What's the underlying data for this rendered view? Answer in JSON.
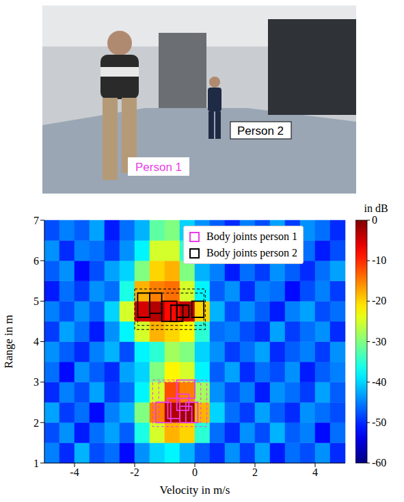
{
  "photo": {
    "labels": [
      {
        "text": "Person 1",
        "color": "#e83ee8"
      },
      {
        "text": "Person 2",
        "color": "#000000"
      }
    ]
  },
  "chart_data": {
    "type": "heatmap",
    "xlabel": "Velocity in m/s",
    "ylabel": "Range in m",
    "xlim": [
      -5,
      5
    ],
    "xticks": [
      -4,
      -2,
      0,
      2,
      4
    ],
    "ylim": [
      1,
      7
    ],
    "yticks": [
      1,
      2,
      3,
      4,
      5,
      6,
      7
    ],
    "legend": "upper right",
    "cells": {
      "velocity_edges": [
        -5,
        -4.5,
        -4,
        -3.5,
        -3,
        -2.5,
        -2,
        -1.5,
        -1,
        -0.5,
        0,
        0.5,
        1,
        1.5,
        2,
        2.5,
        3,
        3.5,
        4,
        4.5,
        5
      ],
      "range_edges": [
        1,
        1.5,
        2,
        2.5,
        3,
        3.5,
        4,
        4.5,
        5,
        5.5,
        6,
        6.5,
        7
      ],
      "values": [
        [
          -45,
          -50,
          -42,
          -48,
          -46,
          -52,
          -44,
          -40,
          -38,
          -42,
          -47,
          -50,
          -44,
          -49,
          -43,
          -51,
          -46,
          -48,
          -44,
          -50
        ],
        [
          -48,
          -44,
          -51,
          -46,
          -43,
          -47,
          -36,
          -25,
          -18,
          -20,
          -35,
          -46,
          -50,
          -44,
          -48,
          -42,
          -47,
          -45,
          -52,
          -46
        ],
        [
          -43,
          -49,
          -46,
          -52,
          -45,
          -42,
          -30,
          -15,
          -3,
          -2,
          -18,
          -40,
          -46,
          -49,
          -43,
          -47,
          -50,
          -44,
          -46,
          -48
        ],
        [
          -50,
          -45,
          -48,
          -43,
          -49,
          -46,
          -38,
          -25,
          -12,
          -15,
          -28,
          -44,
          -48,
          -45,
          -51,
          -44,
          -46,
          -49,
          -43,
          -47
        ],
        [
          -46,
          -52,
          -44,
          -47,
          -50,
          -43,
          -40,
          -30,
          -22,
          -25,
          -38,
          -47,
          -43,
          -50,
          -46,
          -48,
          -44,
          -51,
          -47,
          -45
        ],
        [
          -44,
          -47,
          -50,
          -45,
          -42,
          -48,
          -38,
          -35,
          -28,
          -30,
          -40,
          -44,
          -49,
          -46,
          -43,
          -50,
          -47,
          -45,
          -49,
          -44
        ],
        [
          -49,
          -43,
          -46,
          -51,
          -44,
          -38,
          -25,
          -18,
          -20,
          -22,
          -35,
          -46,
          -45,
          -48,
          -50,
          -43,
          -49,
          -46,
          -44,
          -50
        ],
        [
          -45,
          -48,
          -44,
          -47,
          -40,
          -25,
          -5,
          -3,
          -8,
          -4,
          -20,
          -42,
          -48,
          -44,
          -47,
          -51,
          -45,
          -43,
          -48,
          -46
        ],
        [
          -51,
          -46,
          -49,
          -44,
          -46,
          -36,
          -18,
          -15,
          -14,
          -25,
          -38,
          -47,
          -44,
          -50,
          -45,
          -46,
          -52,
          -48,
          -45,
          -49
        ],
        [
          -47,
          -44,
          -52,
          -48,
          -43,
          -40,
          -30,
          -20,
          -18,
          -30,
          -42,
          -45,
          -51,
          -46,
          -49,
          -44,
          -47,
          -50,
          -46,
          -43
        ],
        [
          -44,
          -50,
          -45,
          -46,
          -49,
          -44,
          -38,
          -25,
          -25,
          -35,
          -46,
          -49,
          -43,
          -47,
          -44,
          -50,
          -45,
          -46,
          -51,
          -48
        ],
        [
          -48,
          -45,
          -47,
          -43,
          -51,
          -46,
          -42,
          -32,
          -30,
          -40,
          -44,
          -47,
          -50,
          -45,
          -48,
          -43,
          -49,
          -44,
          -46,
          -50
        ]
      ]
    },
    "colorbar": {
      "label": "in dB",
      "range": [
        -60,
        0
      ],
      "ticks": [
        0,
        -10,
        -20,
        -30,
        -40,
        -50,
        -60
      ]
    },
    "series": [
      {
        "name": "Body joints person 1",
        "color": "#e83ee8",
        "boxes": [
          [
            -1.3,
            -0.8,
            2.0,
            2.5
          ],
          [
            -0.9,
            -0.5,
            2.1,
            2.6
          ],
          [
            -0.5,
            -0.1,
            2.0,
            2.4
          ],
          [
            -0.3,
            0.1,
            2.0,
            2.5
          ],
          [
            -0.6,
            -0.2,
            2.3,
            2.7
          ],
          [
            -0.6,
            0.0,
            2.6,
            3.05
          ]
        ],
        "outer_boxes": [
          [
            -1.4,
            0.4,
            1.9,
            3.05
          ],
          [
            -1.2,
            0.2,
            2.0,
            3.0
          ]
        ]
      },
      {
        "name": "Body joints person 2",
        "color": "#000000",
        "boxes": [
          [
            -1.9,
            -1.5,
            4.6,
            5.2
          ],
          [
            -1.5,
            -1.1,
            4.7,
            5.2
          ],
          [
            -1.1,
            -0.6,
            4.5,
            5.0
          ],
          [
            -0.8,
            -0.4,
            4.5,
            4.9
          ],
          [
            -0.6,
            -0.2,
            4.6,
            4.9
          ],
          [
            -0.1,
            0.3,
            4.6,
            5.0
          ]
        ],
        "outer_boxes": [
          [
            -2.0,
            0.35,
            4.3,
            5.3
          ],
          [
            -1.9,
            0.3,
            4.4,
            5.2
          ]
        ]
      }
    ]
  }
}
